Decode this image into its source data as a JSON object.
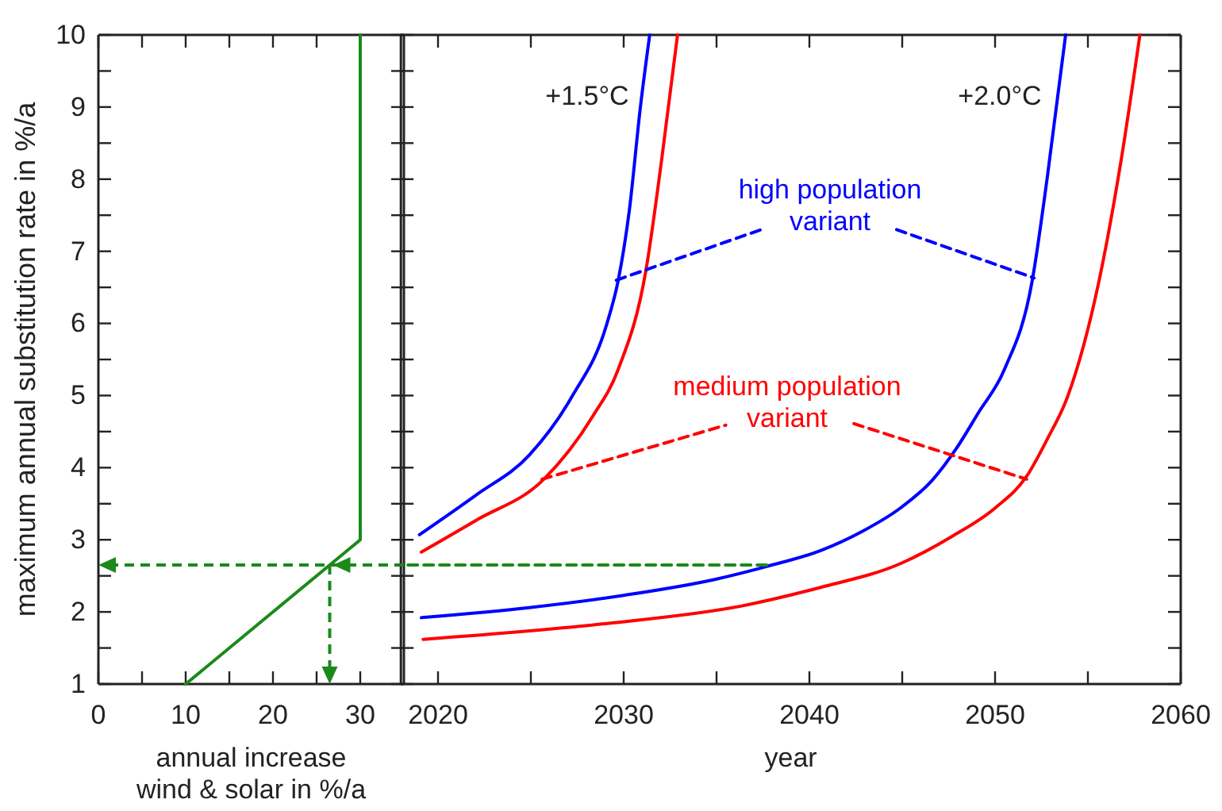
{
  "chart_data": [
    {
      "type": "line",
      "xlabel": "annual increase\nwind & solar in %/a",
      "ylabel": "maximum annual substitution rate in %/a",
      "xlim": [
        0,
        35
      ],
      "xticks": [
        0,
        {
          "value": 5,
          "label": null
        },
        10,
        {
          "value": 15,
          "label": null
        },
        20,
        {
          "value": 25,
          "label": null
        },
        30
      ],
      "ylim": [
        1,
        10
      ],
      "yticks": [
        1,
        {
          "value": 1.5,
          "label": null
        },
        2,
        {
          "value": 2.5,
          "label": null
        },
        3,
        {
          "value": 3.5,
          "label": null
        },
        4,
        {
          "value": 4.5,
          "label": null
        },
        5,
        {
          "value": 5.5,
          "label": null
        },
        6,
        {
          "value": 6.5,
          "label": null
        },
        7,
        {
          "value": 7.5,
          "label": null
        },
        8,
        {
          "value": 8.5,
          "label": null
        },
        9,
        {
          "value": 9.5,
          "label": null
        },
        10
      ],
      "series": [
        {
          "color": "#1a8a1a",
          "x": [
            10,
            30,
            30
          ],
          "values": [
            1,
            3,
            10
          ]
        }
      ],
      "ref_lines": [
        {
          "axis": "y",
          "value": 2.65,
          "color": "#1a8a1a",
          "line_style": "dashed"
        }
      ]
    },
    {
      "type": "line",
      "xlabel": "year",
      "tick_labels": "x",
      "xlim": [
        2018,
        2060
      ],
      "xticks": [
        2020,
        {
          "value": 2025,
          "label": null
        },
        2030,
        {
          "value": 2035,
          "label": null
        },
        2040,
        {
          "value": 2045,
          "label": null
        },
        2050,
        {
          "value": 2055,
          "label": null
        },
        2060
      ],
      "ylim": [
        1,
        10
      ],
      "yticks": [
        1,
        {
          "value": 1.5,
          "label": null
        },
        2,
        {
          "value": 2.5,
          "label": null
        },
        3,
        {
          "value": 3.5,
          "label": null
        },
        4,
        {
          "value": 4.5,
          "label": null
        },
        5,
        {
          "value": 5.5,
          "label": null
        },
        6,
        {
          "value": 6.5,
          "label": null
        },
        7,
        {
          "value": 7.5,
          "label": null
        },
        8,
        {
          "value": 8.5,
          "label": null
        },
        9,
        {
          "value": 9.5,
          "label": null
        },
        10
      ],
      "series": [
        {
          "color": "#0000ff",
          "x": [
            2019.0,
            2022.05,
            2024.9,
            2027.2,
            2029.1,
            2029.7,
            2030.3,
            2030.9,
            2031.4
          ],
          "values": [
            3.07,
            3.62,
            4.17,
            4.98,
            6.0,
            6.59,
            7.56,
            9.0,
            10
          ]
        },
        {
          "color": "#ff0000",
          "x": [
            2019.1,
            2022.05,
            2025.7,
            2028.3,
            2029.7,
            2031.2,
            2032.05,
            2032.9
          ],
          "values": [
            2.83,
            3.27,
            3.84,
            4.7,
            5.36,
            6.74,
            8.28,
            10
          ]
        },
        {
          "color": "#0000ff",
          "x": [
            2019.1,
            2024.9,
            2030.0,
            2034.9,
            2037.7,
            2040.6,
            2042.8,
            2044.9,
            2046.6,
            2047.9,
            2049.1,
            2050.5,
            2052.0,
            2052.8,
            2053.8
          ],
          "values": [
            1.92,
            2.06,
            2.23,
            2.45,
            2.63,
            2.85,
            3.11,
            3.44,
            3.82,
            4.26,
            4.76,
            5.36,
            6.59,
            8.0,
            10
          ]
        },
        {
          "color": "#ff0000",
          "x": [
            2019.2,
            2029.1,
            2036.3,
            2040.6,
            2044.9,
            2047.7,
            2050.0,
            2051.7,
            2052.8,
            2053.9,
            2055.6,
            2056.8,
            2057.8
          ],
          "values": [
            1.62,
            1.84,
            2.08,
            2.34,
            2.67,
            3.05,
            3.44,
            3.88,
            4.39,
            4.98,
            6.59,
            8.28,
            10
          ]
        },
        {
          "color": "#1a8a1a",
          "x": [
            2037.7,
            2018
          ],
          "values": [
            2.65,
            2.65
          ],
          "line_style": "dashed"
        },
        {
          "color": "#0000ff",
          "x": [
            2029.6,
            2037.4
          ],
          "values": [
            6.6,
            7.3
          ],
          "line_style": "dashed"
        },
        {
          "color": "#0000ff",
          "x": [
            2044.7,
            2052.1
          ],
          "values": [
            7.3,
            6.63
          ],
          "line_style": "dashed"
        },
        {
          "color": "#ff0000",
          "x": [
            2025.6,
            2035.5
          ],
          "values": [
            3.84,
            4.59
          ],
          "line_style": "dashed"
        },
        {
          "color": "#ff0000",
          "x": [
            2042.4,
            2051.7
          ],
          "values": [
            4.61,
            3.84
          ],
          "line_style": "dashed"
        }
      ],
      "annotations": [
        "+1.5°C",
        "+2.0°C",
        "high population\nvariant",
        "medium population\nvariant"
      ]
    }
  ]
}
